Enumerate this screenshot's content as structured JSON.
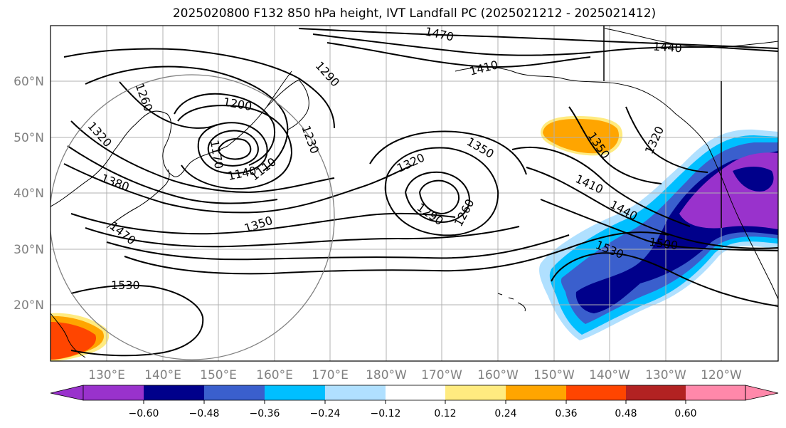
{
  "title": "2025020800 F132 850 hPa height, IVT Landfall PC (2025021212 - 2025021412)",
  "map": {
    "projection": "Plate Carree",
    "lon_range": [
      120,
      250
    ],
    "lat_range": [
      10,
      70
    ],
    "lon_ticks": [
      "130°E",
      "140°E",
      "150°E",
      "160°E",
      "170°E",
      "180°W",
      "170°W",
      "160°W",
      "150°W",
      "140°W",
      "130°W",
      "120°W"
    ],
    "lat_ticks": [
      "20°N",
      "30°N",
      "40°N",
      "50°N",
      "60°N"
    ],
    "contour_labels": [
      "1470",
      "1440",
      "1410",
      "1290",
      "1260",
      "1200",
      "1320",
      "1170",
      "1230",
      "1140",
      "1110",
      "1380",
      "1350",
      "1320",
      "1350",
      "1290",
      "1260",
      "1350",
      "1410",
      "1440",
      "1500",
      "1530",
      "1530",
      "1470",
      "1320"
    ],
    "colors": {
      "neg_060": "#9932cc",
      "neg_048": "#00008b",
      "neg_036": "#3a5fcd",
      "neg_024": "#00bfff",
      "neg_012": "#b0e0ff",
      "neutral": "#ffffff",
      "pos_012": "#ffeb80",
      "pos_024": "#ffa500",
      "pos_036": "#ff4500",
      "pos_048": "#b22222",
      "pos_060": "#ff88aa",
      "gridline": "#b0b0b0",
      "contour": "#000000"
    }
  },
  "colorbar": {
    "ticks": [
      "−0.60",
      "−0.48",
      "−0.36",
      "−0.24",
      "−0.12",
      "0.12",
      "0.24",
      "0.36",
      "0.48",
      "0.60"
    ],
    "colors": [
      "#9932cc",
      "#00008b",
      "#3a5fcd",
      "#00bfff",
      "#b0e0ff",
      "#ffffff",
      "#ffeb80",
      "#ffa500",
      "#ff4500",
      "#b22222",
      "#ff88aa"
    ]
  }
}
